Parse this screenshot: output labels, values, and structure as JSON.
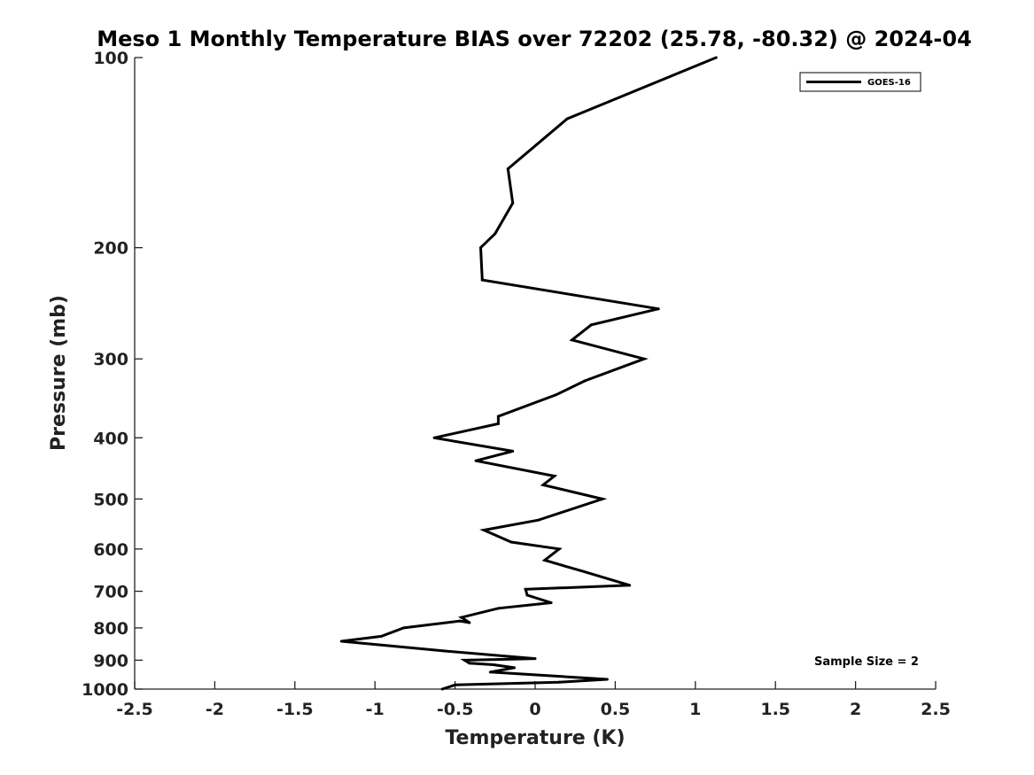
{
  "chart_data": {
    "type": "line",
    "title": "Meso 1 Monthly Temperature BIAS over 72202 (25.78, -80.32) @ 2024-04",
    "xlabel": "Temperature (K)",
    "ylabel": "Pressure (mb)",
    "xlim": [
      -2.5,
      2.5
    ],
    "ylim": [
      1000,
      100
    ],
    "y_scale": "log",
    "y_reversed": true,
    "grid": false,
    "x_ticks": [
      -2.5,
      -2,
      -1.5,
      -1,
      -0.5,
      0,
      0.5,
      1,
      1.5,
      2,
      2.5
    ],
    "x_tick_labels": [
      "-2.5",
      "-2",
      "-1.5",
      "-1",
      "-0.5",
      "0",
      "0.5",
      "1",
      "1.5",
      "2",
      "2.5"
    ],
    "y_ticks": [
      100,
      200,
      300,
      400,
      500,
      600,
      700,
      800,
      900,
      1000
    ],
    "y_tick_labels": [
      "100",
      "200",
      "300",
      "400",
      "500",
      "600",
      "700",
      "800",
      "900",
      "1000"
    ],
    "legend": {
      "position": "top-right",
      "entries": [
        "GOES-16"
      ]
    },
    "annotation": "Sample Size = 2",
    "series": [
      {
        "name": "GOES-16",
        "color": "#000000",
        "points": [
          {
            "x": 1.13,
            "y": 100
          },
          {
            "x": 0.2,
            "y": 125
          },
          {
            "x": -0.17,
            "y": 150
          },
          {
            "x": -0.14,
            "y": 170
          },
          {
            "x": -0.25,
            "y": 190
          },
          {
            "x": -0.34,
            "y": 200
          },
          {
            "x": -0.33,
            "y": 225
          },
          {
            "x": 0.77,
            "y": 250
          },
          {
            "x": 0.35,
            "y": 265
          },
          {
            "x": 0.23,
            "y": 280
          },
          {
            "x": 0.68,
            "y": 300
          },
          {
            "x": 0.31,
            "y": 325
          },
          {
            "x": 0.13,
            "y": 342
          },
          {
            "x": -0.23,
            "y": 370
          },
          {
            "x": -0.23,
            "y": 380
          },
          {
            "x": -0.63,
            "y": 400
          },
          {
            "x": -0.14,
            "y": 420
          },
          {
            "x": -0.37,
            "y": 435
          },
          {
            "x": 0.12,
            "y": 460
          },
          {
            "x": 0.05,
            "y": 475
          },
          {
            "x": 0.42,
            "y": 500
          },
          {
            "x": 0.02,
            "y": 540
          },
          {
            "x": -0.32,
            "y": 560
          },
          {
            "x": -0.15,
            "y": 585
          },
          {
            "x": 0.15,
            "y": 600
          },
          {
            "x": 0.06,
            "y": 625
          },
          {
            "x": 0.29,
            "y": 650
          },
          {
            "x": 0.59,
            "y": 685
          },
          {
            "x": -0.06,
            "y": 695
          },
          {
            "x": -0.05,
            "y": 710
          },
          {
            "x": 0.1,
            "y": 730
          },
          {
            "x": -0.23,
            "y": 745
          },
          {
            "x": -0.46,
            "y": 770
          },
          {
            "x": -0.41,
            "y": 785
          },
          {
            "x": -0.47,
            "y": 780
          },
          {
            "x": -0.82,
            "y": 800
          },
          {
            "x": -0.96,
            "y": 825
          },
          {
            "x": -1.21,
            "y": 840
          },
          {
            "x": -0.57,
            "y": 870
          },
          {
            "x": 0.0,
            "y": 895
          },
          {
            "x": -0.44,
            "y": 900
          },
          {
            "x": -0.41,
            "y": 910
          },
          {
            "x": -0.26,
            "y": 915
          },
          {
            "x": -0.13,
            "y": 925
          },
          {
            "x": -0.28,
            "y": 940
          },
          {
            "x": 0.45,
            "y": 965
          },
          {
            "x": 0.15,
            "y": 975
          },
          {
            "x": -0.5,
            "y": 985
          },
          {
            "x": -0.58,
            "y": 1000
          }
        ]
      }
    ]
  }
}
